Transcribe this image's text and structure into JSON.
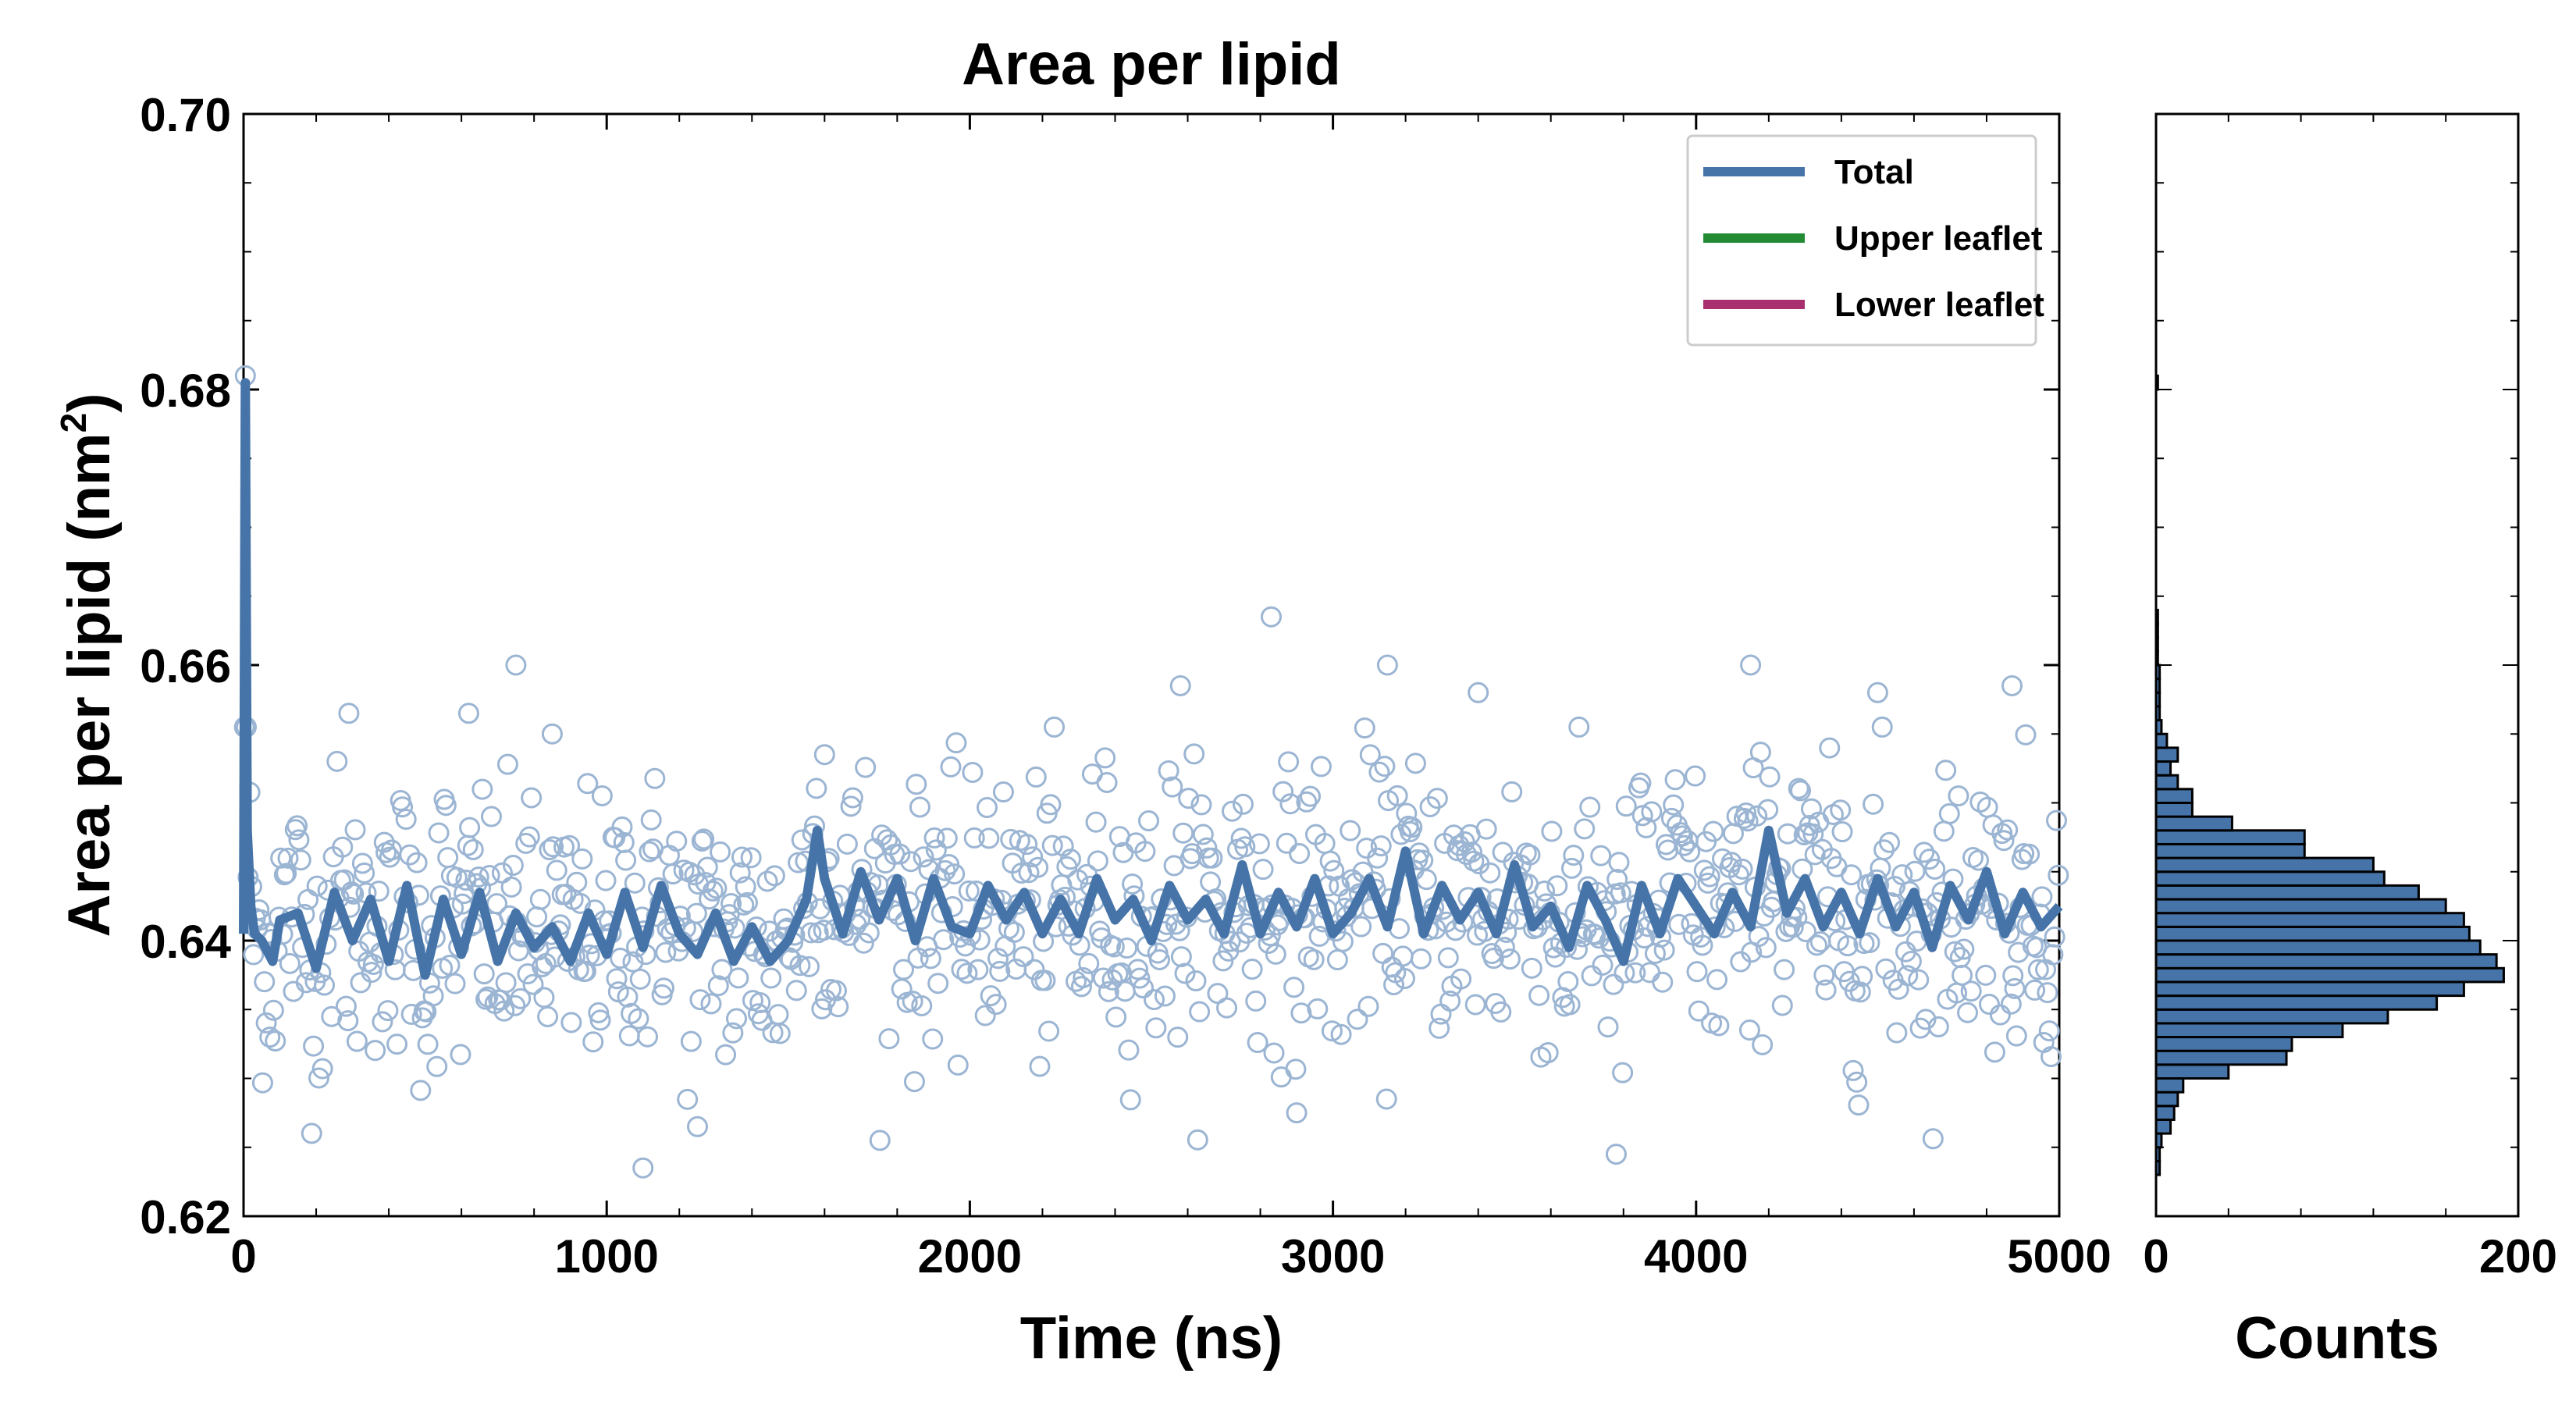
{
  "chart_data": [
    {
      "type": "line",
      "title": "Area per lipid",
      "xlabel": "Time (ns)",
      "ylabel": "Area per lipid (nm",
      "ylabel_superscript": "2",
      "ylabel_suffix": ")",
      "xlim": [
        0,
        5000
      ],
      "ylim": [
        0.62,
        0.7
      ],
      "xticks": [
        0,
        1000,
        2000,
        3000,
        4000,
        5000
      ],
      "xtick_labels": [
        "0",
        "1000",
        "2000",
        "3000",
        "4000",
        "5000"
      ],
      "yticks": [
        0.62,
        0.64,
        0.66,
        0.68,
        0.7
      ],
      "ytick_labels": [
        "0.62",
        "0.64",
        "0.66",
        "0.68",
        "0.70"
      ],
      "grid": false,
      "legend_position": "top-right",
      "colors": {
        "total": "#4674a8",
        "upper": "#238b34",
        "lower": "#a8306e",
        "scatter": "#9bb5d3"
      },
      "legend": [
        "Total",
        "Upper leaflet",
        "Lower leaflet"
      ],
      "series": [
        {
          "name": "Total",
          "style": "line",
          "x": [
            0,
            5,
            10,
            20,
            30,
            50,
            80,
            100,
            150,
            200,
            250,
            300,
            350,
            400,
            450,
            500,
            550,
            600,
            650,
            700,
            750,
            800,
            850,
            900,
            950,
            1000,
            1050,
            1100,
            1150,
            1200,
            1250,
            1300,
            1350,
            1400,
            1450,
            1500,
            1550,
            1580,
            1600,
            1650,
            1700,
            1750,
            1800,
            1850,
            1900,
            1950,
            2000,
            2050,
            2100,
            2150,
            2200,
            2250,
            2300,
            2350,
            2400,
            2450,
            2500,
            2550,
            2600,
            2650,
            2700,
            2750,
            2800,
            2850,
            2900,
            2950,
            3000,
            3050,
            3100,
            3150,
            3200,
            3250,
            3300,
            3350,
            3400,
            3450,
            3500,
            3550,
            3600,
            3650,
            3700,
            3750,
            3800,
            3850,
            3900,
            3950,
            4000,
            4050,
            4100,
            4150,
            4200,
            4250,
            4300,
            4350,
            4400,
            4450,
            4500,
            4550,
            4600,
            4650,
            4700,
            4750,
            4800,
            4850,
            4900,
            4950,
            5000
          ],
          "y": [
            0.6405,
            0.6805,
            0.648,
            0.6425,
            0.6405,
            0.64,
            0.6385,
            0.6415,
            0.642,
            0.638,
            0.6435,
            0.64,
            0.643,
            0.6385,
            0.644,
            0.6375,
            0.643,
            0.639,
            0.6435,
            0.6385,
            0.642,
            0.6395,
            0.641,
            0.6385,
            0.642,
            0.639,
            0.6435,
            0.6395,
            0.644,
            0.6405,
            0.639,
            0.642,
            0.6385,
            0.641,
            0.6385,
            0.64,
            0.643,
            0.648,
            0.6445,
            0.6405,
            0.645,
            0.6415,
            0.6445,
            0.64,
            0.6445,
            0.641,
            0.6405,
            0.644,
            0.6415,
            0.6435,
            0.6405,
            0.643,
            0.6405,
            0.6445,
            0.6415,
            0.643,
            0.64,
            0.644,
            0.6415,
            0.643,
            0.6405,
            0.6455,
            0.6405,
            0.6435,
            0.641,
            0.6445,
            0.6405,
            0.642,
            0.6445,
            0.641,
            0.6465,
            0.6405,
            0.644,
            0.6415,
            0.6435,
            0.6405,
            0.6455,
            0.641,
            0.6425,
            0.6395,
            0.644,
            0.6415,
            0.6385,
            0.644,
            0.6405,
            0.6445,
            0.6425,
            0.6405,
            0.6435,
            0.641,
            0.648,
            0.642,
            0.6445,
            0.641,
            0.6435,
            0.6405,
            0.6445,
            0.641,
            0.6435,
            0.6395,
            0.644,
            0.6415,
            0.645,
            0.6405,
            0.6435,
            0.641,
            0.6425
          ]
        },
        {
          "name": "Upper leaflet",
          "style": "line",
          "x": [],
          "y": []
        },
        {
          "name": "Lower leaflet",
          "style": "line",
          "x": [],
          "y": []
        },
        {
          "name": "Area per lipid samples",
          "style": "scatter",
          "note": "approximately 1000 open-circle samples, mean 0.6425, sd 0.0055; outliers listed",
          "mean": 0.6425,
          "std": 0.0055,
          "count": 1000,
          "outliers_x": [
            5,
            290,
            620,
            750,
            850,
            1100,
            1250,
            1600,
            2580,
            2830,
            2900,
            3150,
            3400,
            3780,
            4150,
            4500,
            4870
          ],
          "outliers_y": [
            0.681,
            0.6565,
            0.6565,
            0.66,
            0.655,
            0.6235,
            0.6265,
            0.6535,
            0.6585,
            0.6635,
            0.6275,
            0.66,
            0.658,
            0.6245,
            0.66,
            0.658,
            0.6585
          ]
        }
      ]
    },
    {
      "type": "bar",
      "orientation": "horizontal",
      "title": "",
      "xlabel": "Counts",
      "ylabel": "",
      "xlim": [
        0,
        200
      ],
      "ylim": [
        0.62,
        0.7
      ],
      "xticks": [
        0,
        200
      ],
      "xtick_labels": [
        "0",
        "200"
      ],
      "bin_width": 0.001,
      "bin_starts": [
        0.623,
        0.624,
        0.625,
        0.626,
        0.627,
        0.628,
        0.629,
        0.63,
        0.631,
        0.632,
        0.633,
        0.634,
        0.635,
        0.636,
        0.637,
        0.638,
        0.639,
        0.64,
        0.641,
        0.642,
        0.643,
        0.644,
        0.645,
        0.646,
        0.647,
        0.648,
        0.649,
        0.65,
        0.651,
        0.652,
        0.653,
        0.654,
        0.655,
        0.656,
        0.657,
        0.658,
        0.659,
        0.66,
        0.661,
        0.662,
        0.663,
        0.68
      ],
      "values": [
        2,
        2,
        3,
        8,
        10,
        12,
        15,
        40,
        72,
        75,
        103,
        128,
        155,
        170,
        192,
        188,
        179,
        173,
        170,
        160,
        145,
        126,
        120,
        82,
        82,
        42,
        20,
        20,
        12,
        8,
        12,
        6,
        3,
        2,
        2,
        2,
        2,
        1,
        1,
        1,
        1,
        1
      ],
      "edge_color": "#000000",
      "fill_color": "#4674a8"
    }
  ]
}
